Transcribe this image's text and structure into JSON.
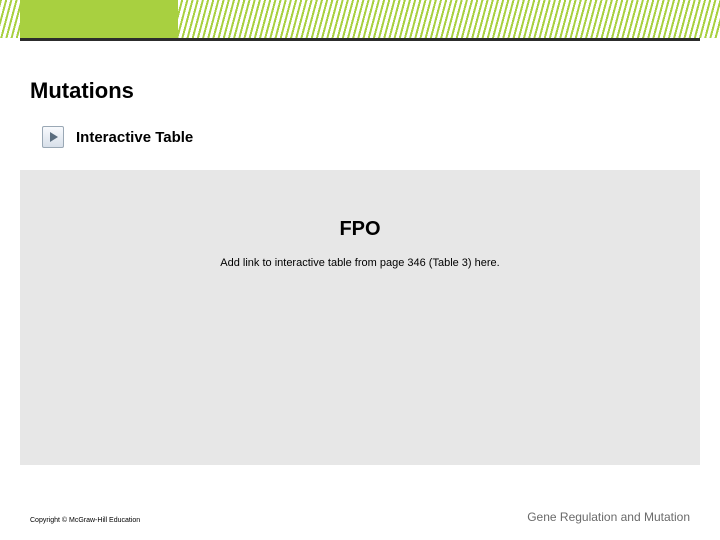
{
  "header": {
    "accent_color": "#a8d040",
    "underline_color": "#2c2c2c"
  },
  "content": {
    "title": "Mutations",
    "subtitle": "Interactive Table"
  },
  "placeholder": {
    "background_color": "#e7e7e7",
    "fpo_label": "FPO",
    "instruction": "Add link to interactive table from page 346 (Table 3) here."
  },
  "footer": {
    "copyright": "Copyright © McGraw-Hill Education",
    "chapter": "Gene Regulation and Mutation"
  }
}
